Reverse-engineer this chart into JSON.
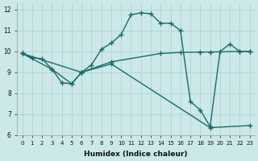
{
  "xlabel": "Humidex (Indice chaleur)",
  "bg_color": "#cce8e8",
  "line_color": "#1a6b6b",
  "grid_color": "#aed4d4",
  "xlim": [
    -0.5,
    23.5
  ],
  "ylim": [
    6,
    12.3
  ],
  "xticks": [
    0,
    1,
    2,
    3,
    4,
    5,
    6,
    7,
    8,
    9,
    10,
    11,
    12,
    13,
    14,
    15,
    16,
    17,
    18,
    19,
    20,
    21,
    22,
    23
  ],
  "yticks": [
    6,
    7,
    8,
    9,
    10,
    11,
    12
  ],
  "line1_x": [
    0,
    1,
    2,
    3,
    4,
    5,
    6,
    7,
    8,
    9,
    10,
    11,
    12,
    13,
    14,
    15,
    16,
    17,
    18,
    19,
    20,
    21,
    22,
    23
  ],
  "line1_y": [
    9.9,
    9.7,
    9.65,
    9.15,
    8.5,
    8.45,
    9.0,
    9.35,
    10.1,
    10.4,
    10.8,
    11.75,
    11.85,
    11.8,
    11.35,
    11.35,
    11.0,
    7.6,
    7.2,
    6.4,
    10.0,
    10.35,
    10.0,
    10.0
  ],
  "line2_x": [
    0,
    3,
    5,
    6,
    9,
    14,
    16,
    18,
    19,
    22,
    23
  ],
  "line2_y": [
    9.9,
    9.15,
    8.45,
    9.0,
    9.5,
    9.9,
    9.95,
    9.97,
    9.97,
    10.0,
    10.0
  ],
  "line3_x": [
    0,
    6,
    9,
    19,
    23
  ],
  "line3_y": [
    9.9,
    9.0,
    9.4,
    6.35,
    6.45
  ],
  "marker": "+",
  "markersize": 4,
  "linewidth": 1.0
}
